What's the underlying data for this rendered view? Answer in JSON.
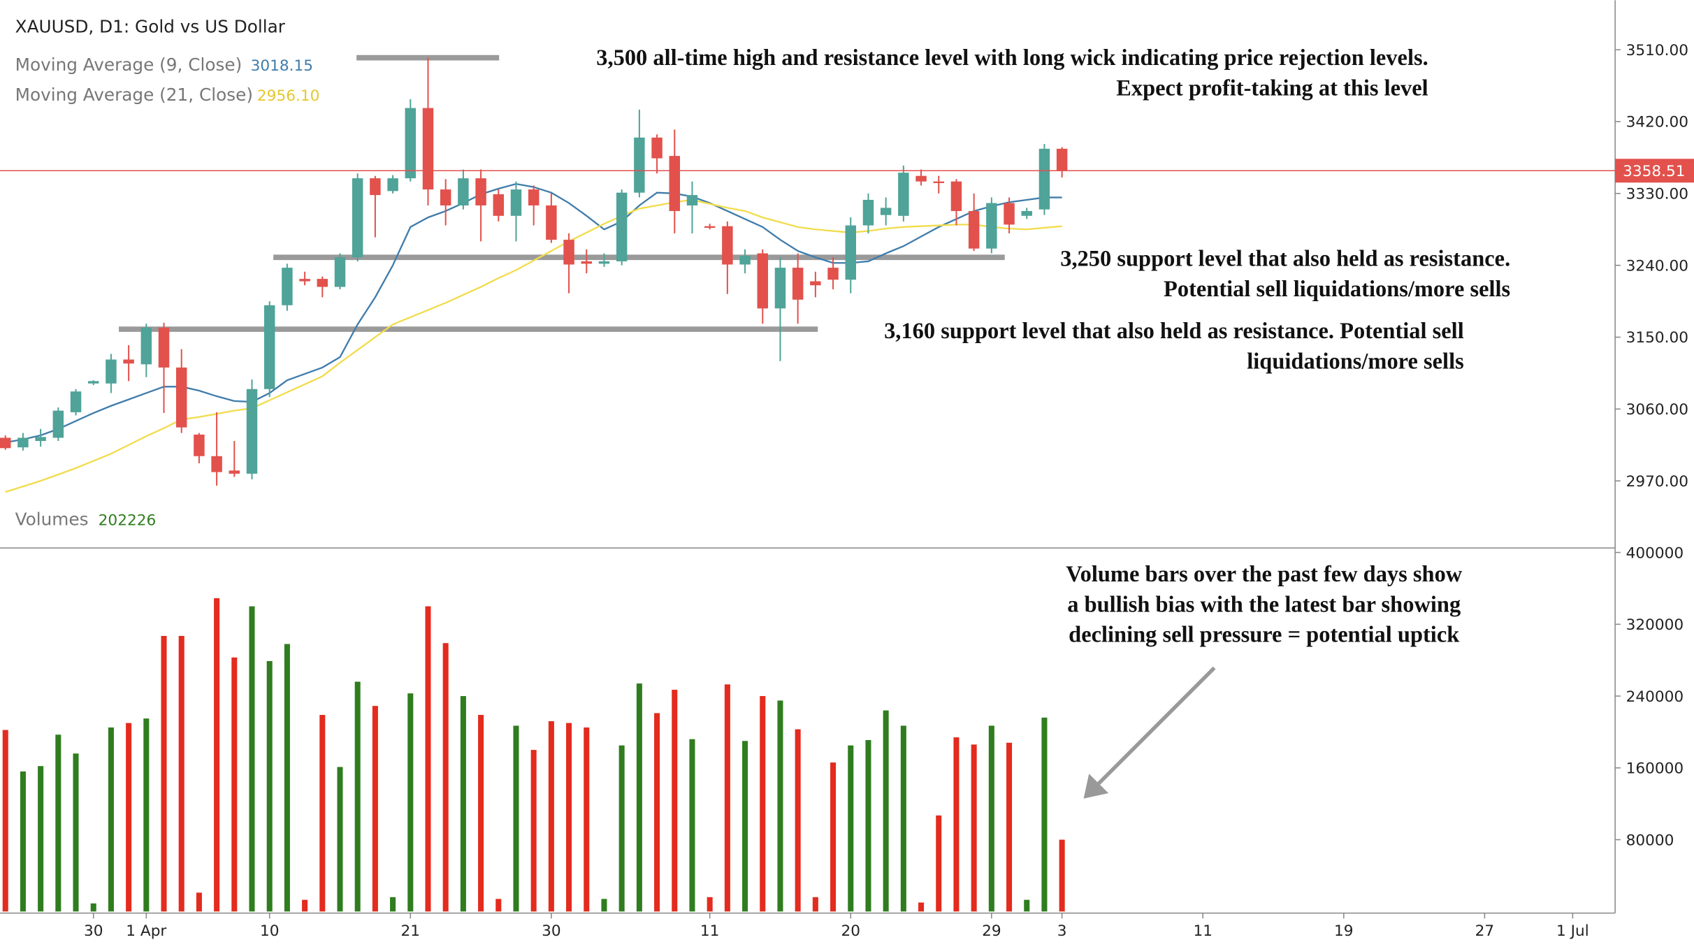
{
  "chart_data": {
    "type": "candlestick",
    "title": "XAUUSD, D1: Gold vs US Dollar",
    "categories": [
      null,
      null,
      null,
      null,
      null,
      "30",
      null,
      null,
      "1 Apr",
      null,
      null,
      null,
      null,
      null,
      null,
      "10",
      null,
      null,
      null,
      null,
      null,
      null,
      null,
      "21",
      null,
      null,
      null,
      null,
      null,
      null,
      null,
      "30",
      null,
      null,
      null,
      null,
      null,
      null,
      null,
      null,
      "11",
      null,
      null,
      null,
      null,
      null,
      null,
      null,
      "20",
      null,
      null,
      null,
      null,
      null,
      null,
      null,
      "29",
      null,
      null,
      null,
      "3",
      null,
      null,
      null,
      null,
      null,
      null,
      null,
      "11",
      null,
      null,
      null,
      null,
      null,
      null,
      null,
      "19",
      null,
      null,
      null,
      null,
      null,
      null,
      null,
      "27",
      null,
      null,
      null,
      null,
      "1 Jul",
      null
    ],
    "open": [
      3024,
      3012,
      3020,
      3024,
      3056,
      3092,
      3092,
      3122,
      3116,
      3162,
      3112,
      3028,
      3001,
      2983,
      2979,
      3085,
      3190,
      3223,
      3223,
      3213,
      3250,
      3349,
      3333,
      3349,
      3437,
      3335,
      3315,
      3349,
      3329,
      3302,
      3335,
      3315,
      3272,
      3245,
      3242,
      3245,
      3331,
      3400,
      3377,
      3315,
      3289,
      3289,
      3241,
      3255,
      3186,
      3237,
      3220,
      3237,
      3222,
      3290,
      3303,
      3302,
      3352,
      3345,
      3345,
      3308,
      3261,
      3318,
      3302,
      3310,
      3386,
      null,
      null,
      null,
      null,
      null,
      null,
      null,
      null,
      null,
      null,
      null,
      null,
      null,
      null,
      null,
      null,
      null,
      null,
      null,
      null,
      null,
      null,
      null,
      null,
      null,
      null,
      null,
      null,
      null,
      null
    ],
    "high": [
      3027,
      3030,
      3035,
      3062,
      3085,
      3096,
      3129,
      3140,
      3167,
      3168,
      3135,
      3030,
      3056,
      3020,
      3097,
      3195,
      3242,
      3232,
      3226,
      3255,
      3355,
      3352,
      3353,
      3448,
      3500,
      3348,
      3360,
      3360,
      3335,
      3345,
      3340,
      3330,
      3280,
      3260,
      3255,
      3335,
      3435,
      3404,
      3410,
      3345,
      3292,
      3295,
      3260,
      3260,
      3250,
      3255,
      3232,
      3250,
      3300,
      3330,
      3325,
      3365,
      3360,
      3352,
      3348,
      3330,
      3325,
      3325,
      3312,
      3392,
      3388,
      null,
      null,
      null,
      null,
      null,
      null,
      null,
      null,
      null,
      null,
      null,
      null,
      null,
      null,
      null,
      null,
      null,
      null,
      null,
      null,
      null,
      null,
      null,
      null,
      null,
      null,
      null,
      null,
      null,
      null
    ],
    "low": [
      3009,
      3008,
      3013,
      3020,
      3052,
      3090,
      3080,
      3095,
      3100,
      3055,
      3030,
      2992,
      2964,
      2975,
      2972,
      3075,
      3183,
      3215,
      3200,
      3210,
      3245,
      3275,
      3330,
      3345,
      3315,
      3290,
      3310,
      3270,
      3295,
      3270,
      3290,
      3268,
      3205,
      3230,
      3238,
      3240,
      3325,
      3355,
      3280,
      3280,
      3285,
      3204,
      3230,
      3167,
      3120,
      3167,
      3200,
      3210,
      3205,
      3280,
      3290,
      3295,
      3340,
      3330,
      3290,
      3258,
      3255,
      3280,
      3298,
      3303,
      3350,
      null,
      null,
      null,
      null,
      null,
      null,
      null,
      null,
      null,
      null,
      null,
      null,
      null,
      null,
      null,
      null,
      null,
      null,
      null,
      null,
      null,
      null,
      null,
      null,
      null,
      null,
      null,
      null,
      null,
      null
    ],
    "close": [
      3011,
      3024,
      3025,
      3058,
      3082,
      3095,
      3122,
      3117,
      3162,
      3112,
      3037,
      3001,
      2981,
      2979,
      3085,
      3190,
      3237,
      3220,
      3213,
      3250,
      3349,
      3328,
      3349,
      3437,
      3335,
      3315,
      3349,
      3315,
      3302,
      3335,
      3315,
      3272,
      3241,
      3242,
      3245,
      3331,
      3400,
      3374,
      3308,
      3328,
      3288,
      3241,
      3252,
      3186,
      3237,
      3197,
      3215,
      3222,
      3290,
      3322,
      3312,
      3356,
      3345,
      3343,
      3308,
      3261,
      3318,
      3291,
      3308,
      3386,
      3358.51,
      null,
      null,
      null,
      null,
      null,
      null,
      null,
      null,
      null,
      null,
      null,
      null,
      null,
      null,
      null,
      null,
      null,
      null,
      null,
      null,
      null,
      null,
      null,
      null,
      null,
      null,
      null,
      null,
      null,
      null
    ],
    "up_color": "#4fa398",
    "down_color": "#e2514c",
    "series": [
      {
        "name": "Moving Average (9, Close)",
        "color": "#3f7cab",
        "values": [
          3018.15,
          3022,
          3027,
          3035,
          3045,
          3055,
          3064,
          3072,
          3080,
          3088,
          3088,
          3083,
          3076,
          3070,
          3069,
          3080,
          3096,
          3104,
          3112,
          3125,
          3166,
          3200,
          3240,
          3288,
          3300,
          3308,
          3318,
          3329,
          3336,
          3342,
          3338,
          3331,
          3318,
          3302,
          3285,
          3295,
          3315,
          3331,
          3330,
          3326,
          3318,
          3308,
          3298,
          3288,
          3272,
          3258,
          3250,
          3243,
          3243,
          3245,
          3255,
          3264,
          3276,
          3288,
          3298,
          3308,
          3314,
          3319,
          3322,
          3325,
          3325,
          null,
          null,
          null,
          null,
          null,
          null,
          null,
          null,
          null,
          null,
          null,
          null,
          null,
          null,
          null,
          null,
          null,
          null,
          null,
          null,
          null,
          null,
          null,
          null,
          null,
          null,
          null,
          null,
          null,
          null
        ]
      },
      {
        "name": "Moving Average (21, Close)",
        "color": "#f2dc4c",
        "values": [
          2956.1,
          2963,
          2970,
          2978,
          2986,
          2995,
          3004,
          3015,
          3026,
          3036,
          3047,
          3050,
          3054,
          3058,
          3061,
          3071,
          3081,
          3091,
          3101,
          3118,
          3134,
          3150,
          3166,
          3175,
          3184,
          3193,
          3203,
          3213,
          3224,
          3234,
          3246,
          3258,
          3270,
          3281,
          3292,
          3302,
          3311,
          3315,
          3319,
          3322,
          3317,
          3312,
          3308,
          3300,
          3294,
          3288,
          3285,
          3283,
          3281,
          3283,
          3286,
          3288,
          3289,
          3290,
          3291,
          3291,
          3288,
          3286,
          3285,
          3287,
          3289,
          null,
          null,
          null,
          null,
          null,
          null,
          null,
          null,
          null,
          null,
          null,
          null,
          null,
          null,
          null,
          null,
          null,
          null,
          null,
          null,
          null,
          null,
          null,
          null,
          null,
          null,
          null,
          null,
          null,
          null
        ],
        "value_labels": [
          "2956.10",
          null,
          null,
          null,
          null,
          null,
          null,
          null,
          null,
          null,
          null,
          null,
          null,
          null,
          null,
          null,
          null,
          null,
          null,
          null,
          null,
          null,
          null,
          null,
          null,
          null,
          null,
          null,
          null,
          null,
          null,
          null,
          null,
          null,
          null,
          null,
          null,
          null,
          null,
          null,
          null,
          null,
          null,
          null,
          null,
          null,
          null,
          null,
          null,
          null,
          null,
          null,
          null,
          null,
          null,
          null,
          null,
          null,
          null,
          null,
          null,
          null,
          null,
          null,
          null,
          null,
          null,
          null,
          null,
          null,
          null,
          null,
          null,
          null,
          null,
          null,
          null,
          null,
          null,
          null,
          null,
          null,
          null,
          null,
          null,
          null,
          null,
          null,
          null,
          null,
          null
        ]
      }
    ],
    "ylim": [
      2886,
      3572
    ],
    "yticks": [
      {
        "value": 2970,
        "label": "2970.00"
      },
      {
        "value": 3060,
        "label": "3060.00"
      },
      {
        "value": 3150,
        "label": "3150.00"
      },
      {
        "value": 3240,
        "label": "3240.00"
      },
      {
        "value": 3330,
        "label": "3330.00"
      },
      {
        "value": 3420,
        "label": "3420.00"
      },
      {
        "value": 3510,
        "label": "3510.00"
      }
    ],
    "grid": false,
    "volume": {
      "name": "Volumes",
      "type": "bar",
      "up_color": "#2f7d1f",
      "down_color": "#e32b1e",
      "values": [
        202226,
        156000,
        162000,
        197000,
        176000,
        9000,
        205000,
        210000,
        215000,
        307000,
        307000,
        21000,
        349000,
        283000,
        340000,
        279000,
        298000,
        13000,
        219000,
        161000,
        256000,
        229000,
        16000,
        243000,
        340000,
        299000,
        240000,
        219000,
        14000,
        207000,
        180000,
        212000,
        210000,
        205000,
        14000,
        185000,
        254000,
        221000,
        247000,
        192000,
        16000,
        253000,
        190000,
        240000,
        235000,
        203000,
        16000,
        166000,
        185000,
        191000,
        224000,
        207000,
        10000,
        107000,
        194000,
        186000,
        207000,
        188000,
        13000,
        216000,
        80000,
        null,
        null,
        null,
        null,
        null,
        null,
        null,
        null,
        null,
        null,
        null,
        null,
        null,
        null,
        null,
        null,
        null,
        null,
        null,
        null,
        null,
        null,
        null,
        null,
        null,
        null,
        null,
        null,
        null,
        null
      ],
      "ylim": [
        0,
        405000
      ],
      "yticks": [
        80000,
        160000,
        240000,
        320000,
        400000
      ]
    },
    "annotations": [
      {
        "lines": [
          "3,500 all-time high and resistance level with long wick indicating price rejection levels.",
          "Expect profit-taking at this level"
        ],
        "level": 3500
      },
      {
        "lines": [
          "3,250 support level that also held as resistance.",
          "Potential sell liquidations/more sells"
        ],
        "level": 3250
      },
      {
        "lines": [
          "3,160 support level that also held as resistance. Potential sell",
          "liquidations/more sells"
        ],
        "level": 3160
      },
      {
        "lines": [
          "Volume bars over the past few days show",
          "a bullish bias with the latest bar showing",
          "declining sell pressure = potential uptick"
        ]
      }
    ]
  }
}
